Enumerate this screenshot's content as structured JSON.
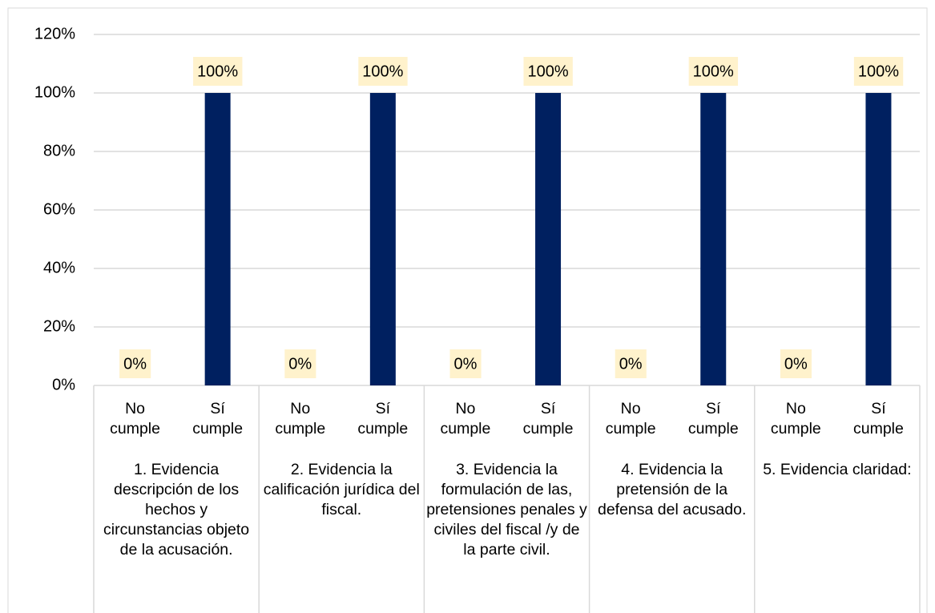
{
  "chart_data": {
    "type": "bar",
    "color": "#002060",
    "label_background": "#fff2cc",
    "grid": true,
    "ylim": [
      0,
      120
    ],
    "yticks": [
      {
        "value": 0,
        "label": "0%"
      },
      {
        "value": 20,
        "label": "20%"
      },
      {
        "value": 40,
        "label": "40%"
      },
      {
        "value": 60,
        "label": "60%"
      },
      {
        "value": 80,
        "label": "80%"
      },
      {
        "value": 100,
        "label": "100%"
      },
      {
        "value": 120,
        "label": "120%"
      }
    ],
    "groups": [
      {
        "label": "1. Evidencia descripción de los hechos y circunstancias objeto de la acusación.",
        "categories": [
          "No cumple",
          "Sí cumple"
        ],
        "values": [
          0,
          100
        ],
        "value_labels": [
          "0%",
          "100%"
        ]
      },
      {
        "label": "2. Evidencia la calificación jurídica del fiscal.",
        "categories": [
          "No cumple",
          "Sí cumple"
        ],
        "values": [
          0,
          100
        ],
        "value_labels": [
          "0%",
          "100%"
        ]
      },
      {
        "label": "3. Evidencia la formulación de las, pretensiones penales y civiles del fiscal /y de la parte civil.",
        "categories": [
          "No cumple",
          "Sí cumple"
        ],
        "values": [
          0,
          100
        ],
        "value_labels": [
          "0%",
          "100%"
        ]
      },
      {
        "label": "4. Evidencia la pretensión de la defensa del acusado.",
        "categories": [
          "No cumple",
          "Sí cumple"
        ],
        "values": [
          0,
          100
        ],
        "value_labels": [
          "0%",
          "100%"
        ]
      },
      {
        "label": "5. Evidencia claridad:",
        "categories": [
          "No cumple",
          "Sí cumple"
        ],
        "values": [
          0,
          100
        ],
        "value_labels": [
          "0%",
          "100%"
        ]
      }
    ]
  }
}
